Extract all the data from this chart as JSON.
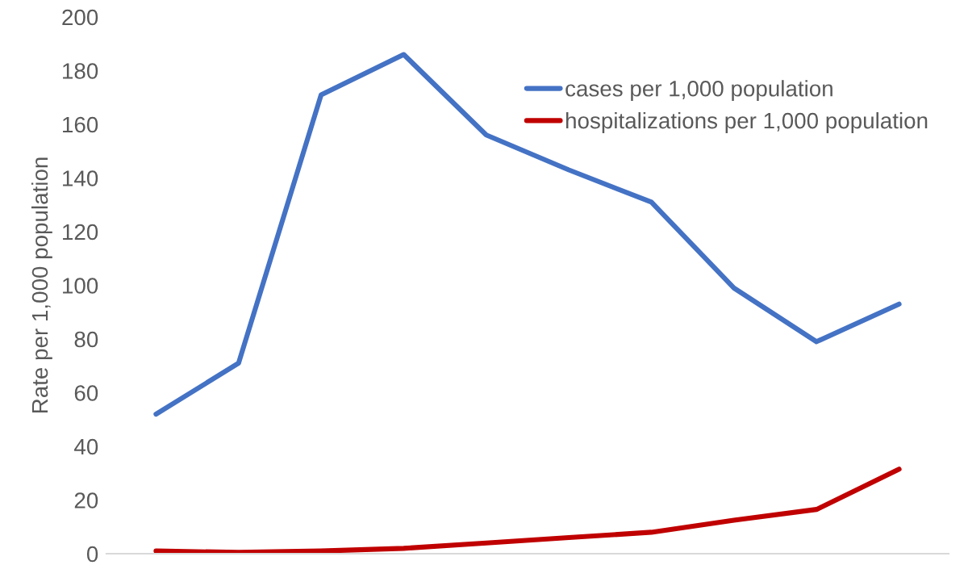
{
  "chart_data": {
    "type": "line",
    "ylabel": "Rate per 1,000 population",
    "categories": [
      null,
      null,
      null,
      null,
      null,
      null,
      null,
      null,
      null,
      null
    ],
    "series": [
      {
        "name": "cases per 1,000 population",
        "color": "#4472c4",
        "values": [
          52,
          71,
          171,
          186,
          156,
          143,
          131,
          99,
          79,
          93
        ]
      },
      {
        "name": "hospitalizations per 1,000 population",
        "color": "#c00000",
        "values": [
          1,
          0.5,
          1,
          2,
          4,
          6,
          8,
          12.5,
          16.5,
          31.5
        ]
      }
    ],
    "ylim": [
      0,
      200
    ],
    "yticks": [
      0,
      20,
      40,
      60,
      80,
      100,
      120,
      140,
      160,
      180,
      200
    ],
    "grid": false,
    "legend": "top right",
    "marker": "none",
    "line_style": "solid"
  }
}
